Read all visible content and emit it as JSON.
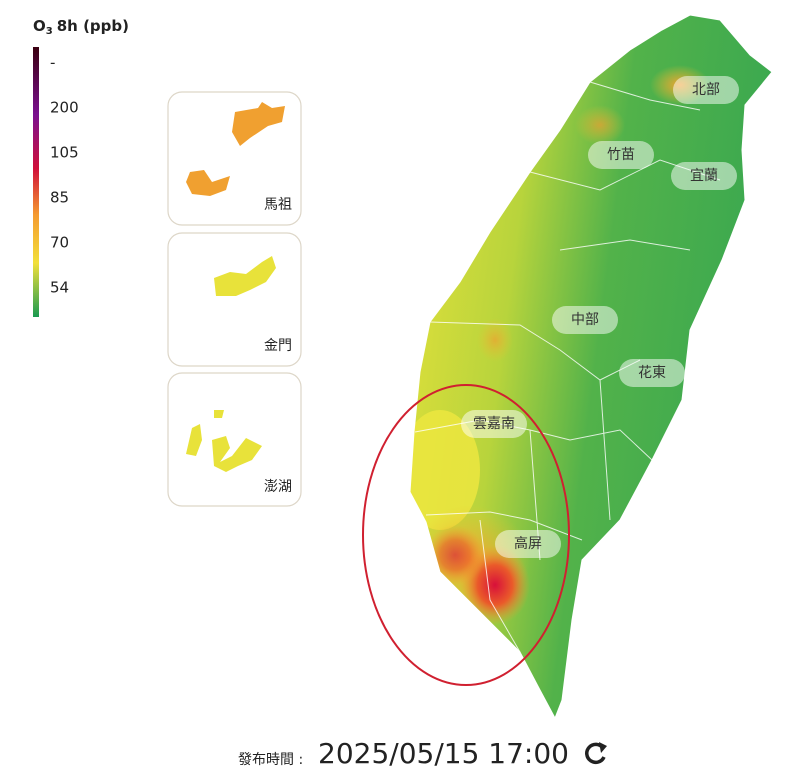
{
  "legend": {
    "title": {
      "main": "O",
      "sub": "3",
      "rest": "8h (ppb)"
    },
    "ticks": [
      "-",
      200,
      105,
      85,
      70,
      54
    ]
  },
  "regions": [
    "北部",
    "竹苗",
    "宜蘭",
    "中部",
    "花東",
    "雲嘉南",
    "高屏"
  ],
  "insets": [
    "馬祖",
    "金門",
    "澎湖"
  ],
  "footer": {
    "label": "發布時間 :",
    "datetime": "2025/05/15 17:00"
  }
}
